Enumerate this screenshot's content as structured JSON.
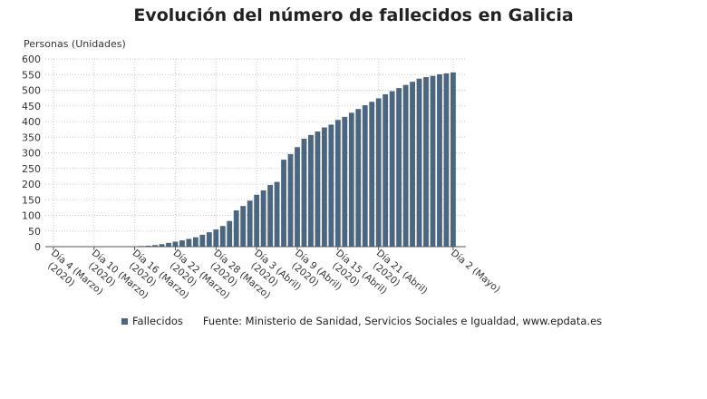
{
  "chart_data": {
    "type": "bar",
    "title": "Evolución del número de fallecidos en Galicia",
    "ylabel": "Personas (Unidades)",
    "xlabel": "",
    "ylim": [
      0,
      600
    ],
    "yticks": [
      0,
      50,
      100,
      150,
      200,
      250,
      300,
      350,
      400,
      450,
      500,
      550,
      600
    ],
    "tick_labels": [
      {
        "index": 0,
        "label": "Día 4 (Marzo) (2020)",
        "line1": "Día 4 (Marzo)",
        "line2": "(2020)"
      },
      {
        "index": 6,
        "label": "Día 10 (Marzo) (2020)",
        "line1": "Día 10 (Marzo)",
        "line2": "(2020)"
      },
      {
        "index": 12,
        "label": "Día 16 (Marzo) (2020)",
        "line1": "Día 16 (Marzo)",
        "line2": "(2020)"
      },
      {
        "index": 18,
        "label": "Día 22 (Marzo) (2020)",
        "line1": "Día 22 (Marzo)",
        "line2": "(2020)"
      },
      {
        "index": 24,
        "label": "Día 28 (Marzo) (2020)",
        "line1": "Día 28 (Marzo)",
        "line2": "(2020)"
      },
      {
        "index": 30,
        "label": "Día 3 (Abril) (2020)",
        "line1": "Día 3 (Abril)",
        "line2": "(2020)"
      },
      {
        "index": 36,
        "label": "Día 9 (Abril) (2020)",
        "line1": "Día 9 (Abril)",
        "line2": "(2020)"
      },
      {
        "index": 42,
        "label": "Día 15 (Abril) (2020)",
        "line1": "Día 15 (Abril)",
        "line2": "(2020)"
      },
      {
        "index": 48,
        "label": "Día 21 (Abril) (2020)",
        "line1": "Día 21 (Abril)",
        "line2": "(2020)"
      },
      {
        "index": 59,
        "label": "Día 2 (Mayo)",
        "line1": "Día 2 (Mayo)",
        "line2": ""
      }
    ],
    "series": [
      {
        "name": "Fallecidos",
        "color": "#4a6680",
        "values": [
          0,
          0,
          0,
          0,
          0,
          0,
          0,
          0,
          0,
          0,
          0,
          1,
          1,
          2,
          3,
          5,
          8,
          12,
          16,
          20,
          25,
          30,
          38,
          46,
          55,
          66,
          82,
          116,
          130,
          147,
          166,
          180,
          197,
          207,
          278,
          296,
          318,
          345,
          357,
          368,
          381,
          390,
          405,
          415,
          428,
          440,
          452,
          463,
          474,
          487,
          497,
          507,
          517,
          527,
          537,
          542,
          546,
          551,
          554,
          557
        ]
      }
    ],
    "grid": true,
    "legend": "bottom-left"
  },
  "legend": {
    "series_label": "Fallecidos",
    "source": "Fuente: Ministerio de Sanidad, Servicios Sociales e Igualdad, www.epdata.es"
  }
}
